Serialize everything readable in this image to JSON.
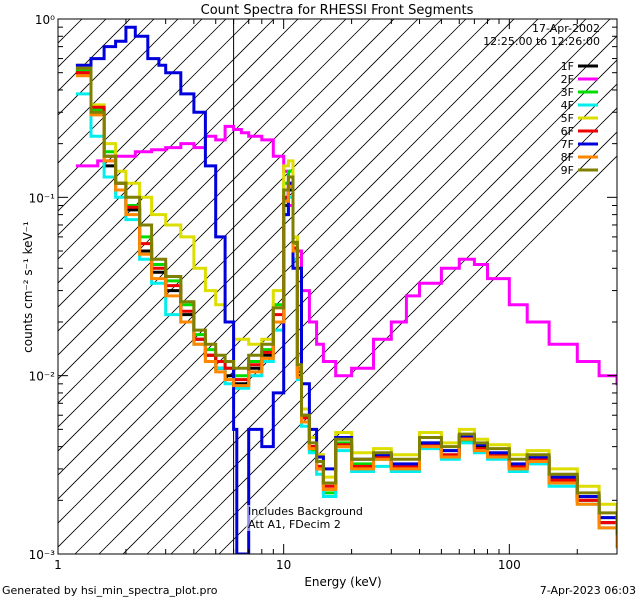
{
  "chart_data": {
    "type": "line",
    "title": "Count Spectra for RHESSI Front Segments",
    "xlabel": "Energy (keV)",
    "ylabel": "counts cm⁻² s⁻¹ keV⁻¹",
    "x_scale": "log",
    "y_scale": "log",
    "xlim": [
      1,
      300
    ],
    "ylim": [
      0.001,
      1.0
    ],
    "x_ticks": [
      {
        "v": 1,
        "label": "1"
      },
      {
        "v": 10,
        "label": "10"
      },
      {
        "v": 100,
        "label": "100"
      }
    ],
    "y_ticks": [
      {
        "v": 1,
        "label": "10⁰"
      },
      {
        "v": 0.1,
        "label": "10⁻¹"
      },
      {
        "v": 0.01,
        "label": "10⁻²"
      },
      {
        "v": 0.001,
        "label": "10⁻³"
      }
    ],
    "date": "17-Apr-2002",
    "time_range": "12:25:00 to 12:26:00",
    "annotation_lines": [
      "Includes Background",
      "Att A1, FDecim 2"
    ],
    "threshold_energy": 6,
    "legend_position": "top-right",
    "series": [
      {
        "name": "1F",
        "color": "#000000",
        "x": [
          1.2,
          1.4,
          1.6,
          1.8,
          2.0,
          2.3,
          2.6,
          3.0,
          3.5,
          4.0,
          4.5,
          5.0,
          5.5,
          6.0,
          7,
          8,
          9,
          10,
          10.5,
          11,
          11.5,
          12,
          13,
          14,
          15,
          17,
          20,
          25,
          30,
          40,
          50,
          60,
          70,
          80,
          100,
          120,
          150,
          200,
          250,
          300
        ],
        "y": [
          0.5,
          0.3,
          0.15,
          0.11,
          0.085,
          0.05,
          0.038,
          0.03,
          0.022,
          0.016,
          0.013,
          0.011,
          0.01,
          0.009,
          0.011,
          0.013,
          0.02,
          0.09,
          0.11,
          0.05,
          0.01,
          0.006,
          0.004,
          0.003,
          0.0025,
          0.004,
          0.003,
          0.0035,
          0.003,
          0.004,
          0.0035,
          0.0045,
          0.004,
          0.0035,
          0.003,
          0.0035,
          0.0025,
          0.002,
          0.0015,
          0.0012
        ]
      },
      {
        "name": "2F",
        "color": "#ff00ff",
        "x": [
          1.2,
          1.5,
          1.8,
          2.2,
          2.6,
          3.0,
          3.5,
          4.0,
          4.5,
          5.0,
          5.5,
          6.0,
          6.5,
          7.0,
          8.0,
          9.0,
          10.0,
          10.5,
          11.0,
          12.0,
          13.0,
          14.0,
          15.0,
          17.0,
          20.0,
          25.0,
          30.0,
          35.0,
          40.0,
          50.0,
          60.0,
          70.0,
          80.0,
          100.0,
          120.0,
          150.0,
          200.0,
          250.0,
          300.0
        ],
        "y": [
          0.15,
          0.16,
          0.17,
          0.18,
          0.185,
          0.19,
          0.2,
          0.19,
          0.22,
          0.21,
          0.25,
          0.24,
          0.23,
          0.22,
          0.21,
          0.17,
          0.14,
          0.09,
          0.05,
          0.03,
          0.02,
          0.015,
          0.012,
          0.01,
          0.011,
          0.016,
          0.02,
          0.028,
          0.033,
          0.04,
          0.045,
          0.042,
          0.035,
          0.025,
          0.02,
          0.015,
          0.012,
          0.01,
          0.009
        ]
      },
      {
        "name": "3F",
        "color": "#00dd00",
        "x": [
          1.2,
          1.4,
          1.6,
          1.8,
          2.0,
          2.3,
          2.6,
          3.0,
          3.5,
          4.0,
          4.5,
          5.0,
          5.5,
          6.0,
          7,
          8,
          9,
          10,
          10.5,
          11,
          11.5,
          12,
          13,
          14,
          15,
          17,
          20,
          25,
          30,
          40,
          50,
          60,
          70,
          80,
          100,
          120,
          150,
          200,
          250,
          300
        ],
        "y": [
          0.52,
          0.31,
          0.18,
          0.12,
          0.09,
          0.06,
          0.042,
          0.034,
          0.025,
          0.017,
          0.014,
          0.012,
          0.011,
          0.01,
          0.012,
          0.014,
          0.025,
          0.12,
          0.14,
          0.055,
          0.011,
          0.0055,
          0.0038,
          0.0031,
          0.0022,
          0.0042,
          0.0032,
          0.0034,
          0.0031,
          0.0042,
          0.0038,
          0.0043,
          0.0038,
          0.0036,
          0.0031,
          0.0033,
          0.0026,
          0.0021,
          0.0016,
          0.0011
        ]
      },
      {
        "name": "4F",
        "color": "#00eeee",
        "x": [
          1.2,
          1.4,
          1.6,
          1.8,
          2.0,
          2.3,
          2.6,
          3.0,
          3.5,
          4.0,
          4.5,
          5.0,
          5.5,
          6.0,
          7,
          8,
          9,
          10,
          10.5,
          11,
          11.5,
          12,
          13,
          14,
          15,
          17,
          20,
          25,
          30,
          40,
          50,
          60,
          70,
          80,
          100,
          120,
          150,
          200,
          250,
          300
        ],
        "y": [
          0.38,
          0.22,
          0.13,
          0.1,
          0.075,
          0.045,
          0.033,
          0.022,
          0.02,
          0.015,
          0.012,
          0.011,
          0.009,
          0.0085,
          0.01,
          0.012,
          0.018,
          0.08,
          0.1,
          0.045,
          0.0095,
          0.0052,
          0.0037,
          0.0028,
          0.0021,
          0.0038,
          0.0029,
          0.0031,
          0.0029,
          0.0039,
          0.0034,
          0.0042,
          0.0037,
          0.0034,
          0.0029,
          0.0032,
          0.0024,
          0.0019,
          0.0014,
          0.0011
        ]
      },
      {
        "name": "5F",
        "color": "#dddd00",
        "x": [
          1.2,
          1.4,
          1.6,
          1.8,
          2.0,
          2.3,
          2.6,
          3.0,
          3.5,
          4.0,
          4.5,
          5.0,
          5.5,
          6.0,
          7,
          8,
          9,
          10,
          10.5,
          11,
          11.5,
          12,
          13,
          14,
          15,
          17,
          20,
          25,
          30,
          40,
          50,
          60,
          70,
          80,
          100,
          120,
          150,
          200,
          250,
          300
        ],
        "y": [
          0.55,
          0.33,
          0.2,
          0.14,
          0.12,
          0.1,
          0.08,
          0.07,
          0.06,
          0.04,
          0.03,
          0.025,
          0.02,
          0.016,
          0.015,
          0.016,
          0.03,
          0.15,
          0.16,
          0.06,
          0.013,
          0.0065,
          0.0045,
          0.0036,
          0.0027,
          0.0048,
          0.0037,
          0.0039,
          0.0036,
          0.0048,
          0.0042,
          0.005,
          0.0044,
          0.0041,
          0.0036,
          0.0038,
          0.003,
          0.0024,
          0.0019,
          0.0015
        ]
      },
      {
        "name": "6F",
        "color": "#ee0000",
        "x": [
          1.2,
          1.4,
          1.6,
          1.8,
          2.0,
          2.3,
          2.6,
          3.0,
          3.5,
          4.0,
          4.5,
          5.0,
          5.5,
          6.0,
          7,
          8,
          9,
          10,
          10.5,
          11,
          11.5,
          12,
          13,
          14,
          15,
          17,
          20,
          25,
          30,
          40,
          50,
          60,
          70,
          80,
          100,
          120,
          150,
          200,
          250,
          300
        ],
        "y": [
          0.5,
          0.32,
          0.17,
          0.12,
          0.088,
          0.055,
          0.04,
          0.032,
          0.023,
          0.016,
          0.013,
          0.012,
          0.011,
          0.0095,
          0.0115,
          0.0135,
          0.022,
          0.1,
          0.12,
          0.052,
          0.0105,
          0.0058,
          0.004,
          0.0031,
          0.0024,
          0.0041,
          0.0031,
          0.0035,
          0.0031,
          0.0041,
          0.0036,
          0.0045,
          0.0039,
          0.0036,
          0.0031,
          0.0034,
          0.0026,
          0.002,
          0.0015,
          0.0012
        ]
      },
      {
        "name": "7F",
        "color": "#0000dd",
        "x": [
          1.2,
          1.4,
          1.6,
          1.8,
          2.0,
          2.2,
          2.5,
          2.8,
          3.0,
          3.5,
          4.0,
          4.5,
          5.0,
          5.5,
          6.0,
          6.2,
          7,
          8,
          9,
          10,
          10.5,
          11,
          12,
          13,
          14,
          15,
          17,
          20,
          25,
          30,
          40,
          50,
          60,
          70,
          80,
          100,
          120,
          150,
          200,
          250,
          300
        ],
        "y": [
          0.55,
          0.6,
          0.7,
          0.75,
          0.9,
          0.8,
          0.6,
          0.55,
          0.5,
          0.38,
          0.3,
          0.15,
          0.06,
          0.02,
          0.005,
          0.001,
          0.005,
          0.004,
          0.008,
          0.08,
          0.12,
          0.04,
          0.009,
          0.005,
          0.0035,
          0.003,
          0.0045,
          0.0034,
          0.0036,
          0.0032,
          0.0042,
          0.0038,
          0.0046,
          0.0041,
          0.0037,
          0.0032,
          0.0035,
          0.0027,
          0.0021,
          0.0016,
          0.0012
        ]
      },
      {
        "name": "8F",
        "color": "#ff8800",
        "x": [
          1.2,
          1.4,
          1.6,
          1.8,
          2.0,
          2.3,
          2.6,
          3.0,
          3.5,
          4.0,
          4.5,
          5.0,
          5.5,
          6.0,
          7,
          8,
          9,
          10,
          10.5,
          11,
          11.5,
          12,
          13,
          14,
          15,
          17,
          20,
          25,
          30,
          40,
          50,
          60,
          70,
          80,
          100,
          120,
          150,
          200,
          250,
          300
        ],
        "y": [
          0.48,
          0.29,
          0.16,
          0.11,
          0.08,
          0.048,
          0.035,
          0.028,
          0.02,
          0.015,
          0.012,
          0.0105,
          0.0095,
          0.0088,
          0.0105,
          0.0125,
          0.02,
          0.095,
          0.115,
          0.05,
          0.0098,
          0.0055,
          0.0039,
          0.003,
          0.0023,
          0.004,
          0.003,
          0.0034,
          0.003,
          0.004,
          0.0035,
          0.0044,
          0.0038,
          0.0035,
          0.003,
          0.0033,
          0.0025,
          0.0019,
          0.0014,
          0.0011
        ]
      },
      {
        "name": "9F",
        "color": "#808000",
        "x": [
          1.2,
          1.4,
          1.6,
          1.8,
          2.0,
          2.3,
          2.6,
          3.0,
          3.5,
          4.0,
          4.5,
          5.0,
          5.5,
          6.0,
          7,
          8,
          9,
          10,
          10.5,
          11,
          11.5,
          12,
          13,
          14,
          15,
          17,
          20,
          25,
          30,
          40,
          50,
          60,
          70,
          80,
          100,
          120,
          150,
          200,
          250,
          300
        ],
        "y": [
          0.53,
          0.3,
          0.17,
          0.12,
          0.1,
          0.07,
          0.045,
          0.036,
          0.026,
          0.018,
          0.015,
          0.013,
          0.012,
          0.011,
          0.013,
          0.015,
          0.024,
          0.11,
          0.13,
          0.056,
          0.0115,
          0.006,
          0.0042,
          0.0033,
          0.0025,
          0.0044,
          0.0034,
          0.0037,
          0.0034,
          0.0045,
          0.004,
          0.0047,
          0.0042,
          0.0039,
          0.0034,
          0.0036,
          0.0028,
          0.0022,
          0.0017,
          0.0013
        ]
      }
    ]
  },
  "footer": {
    "generated_by": "Generated by hsi_min_spectra_plot.pro",
    "timestamp": "7-Apr-2023 06:03"
  }
}
